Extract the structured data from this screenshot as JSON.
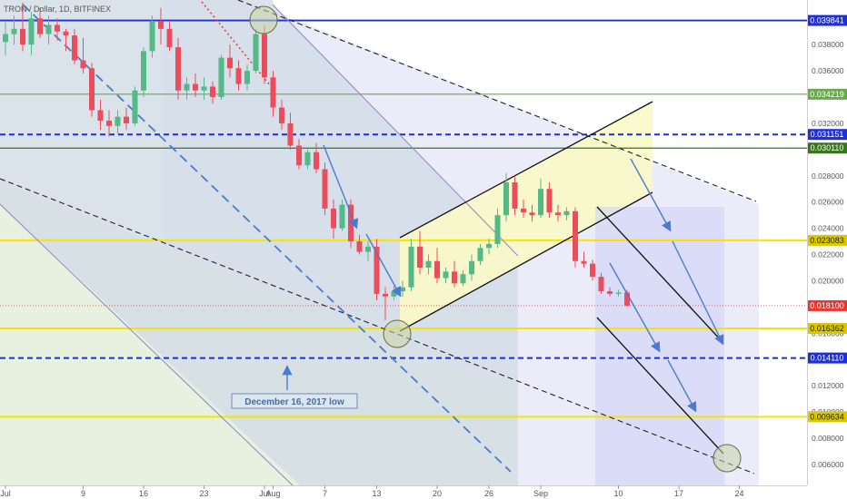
{
  "chart_data": {
    "type": "candlestick",
    "title": "TRON / Dollar, 1D, BITFINEX",
    "ylim": [
      0.0044,
      0.0414
    ],
    "y_ticks": [
      "0.038000",
      "0.036000",
      "0.032000",
      "0.028000",
      "0.026000",
      "0.024000",
      "0.022000",
      "0.020000",
      "0.018000",
      "0.016000",
      "0.012000",
      "0.010000",
      "0.008000",
      "0.006000"
    ],
    "x_ticks": [
      {
        "label": "Jul",
        "day": 0
      },
      {
        "label": "9",
        "day": 9
      },
      {
        "label": "16",
        "day": 16
      },
      {
        "label": "23",
        "day": 23
      },
      {
        "label": "Jul",
        "day": 30
      },
      {
        "label": "Aug",
        "day": 31
      },
      {
        "label": "7",
        "day": 37
      },
      {
        "label": "13",
        "day": 43
      },
      {
        "label": "20",
        "day": 50
      },
      {
        "label": "26",
        "day": 56
      },
      {
        "label": "Sep",
        "day": 62
      },
      {
        "label": "10",
        "day": 71
      },
      {
        "label": "17",
        "day": 78
      },
      {
        "label": "24",
        "day": 85
      }
    ],
    "horizontal_levels": [
      {
        "price": 0.039841,
        "label": "0.039841",
        "color": "#1f2fd6",
        "dash": "solid",
        "width": 1.8
      },
      {
        "price": 0.034219,
        "label": "0.034219",
        "color": "#6aa84f",
        "dash": "solid",
        "width": 1.2
      },
      {
        "price": 0.031151,
        "label": "0.031151",
        "color": "#1f2fd6",
        "dash": "dash",
        "width": 2
      },
      {
        "price": 0.03011,
        "label": "0.030110",
        "color": "#38761d",
        "dash": "solid",
        "width": 1.2
      },
      {
        "price": 0.023083,
        "label": "0.023083",
        "color": "#f2e600",
        "dash": "solid",
        "width": 2
      },
      {
        "price": 0.0181,
        "label": "0.018100",
        "color": "#e06666",
        "dash": "dot",
        "width": 1
      },
      {
        "price": 0.016362,
        "label": "0.016362",
        "color": "#f2e600",
        "dash": "solid",
        "width": 2
      },
      {
        "price": 0.01411,
        "label": "0.014110",
        "color": "#1f2fd6",
        "dash": "dash",
        "width": 2
      },
      {
        "price": 0.009634,
        "label": "0.009634",
        "color": "#f2e600",
        "dash": "solid",
        "width": 2
      }
    ],
    "candles": [
      {
        "d": 0,
        "o": 0.0382,
        "h": 0.0397,
        "l": 0.0372,
        "c": 0.0388
      },
      {
        "d": 1,
        "o": 0.0388,
        "h": 0.0402,
        "l": 0.038,
        "c": 0.0392
      },
      {
        "d": 2,
        "o": 0.0392,
        "h": 0.0412,
        "l": 0.0375,
        "c": 0.038
      },
      {
        "d": 3,
        "o": 0.038,
        "h": 0.0405,
        "l": 0.0372,
        "c": 0.04
      },
      {
        "d": 4,
        "o": 0.04,
        "h": 0.0408,
        "l": 0.0385,
        "c": 0.0388
      },
      {
        "d": 5,
        "o": 0.0388,
        "h": 0.0402,
        "l": 0.038,
        "c": 0.0395
      },
      {
        "d": 6,
        "o": 0.0395,
        "h": 0.04,
        "l": 0.0383,
        "c": 0.039
      },
      {
        "d": 7,
        "o": 0.039,
        "h": 0.0392,
        "l": 0.0375,
        "c": 0.0387
      },
      {
        "d": 8,
        "o": 0.0387,
        "h": 0.0392,
        "l": 0.0365,
        "c": 0.0368
      },
      {
        "d": 9,
        "o": 0.0368,
        "h": 0.0385,
        "l": 0.0358,
        "c": 0.0362
      },
      {
        "d": 10,
        "o": 0.0362,
        "h": 0.0366,
        "l": 0.0325,
        "c": 0.033
      },
      {
        "d": 11,
        "o": 0.033,
        "h": 0.0338,
        "l": 0.0315,
        "c": 0.0322
      },
      {
        "d": 12,
        "o": 0.0322,
        "h": 0.033,
        "l": 0.031,
        "c": 0.0318
      },
      {
        "d": 13,
        "o": 0.0318,
        "h": 0.033,
        "l": 0.0312,
        "c": 0.0325
      },
      {
        "d": 14,
        "o": 0.0325,
        "h": 0.0332,
        "l": 0.0315,
        "c": 0.032
      },
      {
        "d": 15,
        "o": 0.032,
        "h": 0.0348,
        "l": 0.0318,
        "c": 0.0345
      },
      {
        "d": 16,
        "o": 0.0345,
        "h": 0.0378,
        "l": 0.034,
        "c": 0.0375
      },
      {
        "d": 17,
        "o": 0.0375,
        "h": 0.0402,
        "l": 0.037,
        "c": 0.0398
      },
      {
        "d": 18,
        "o": 0.0398,
        "h": 0.0408,
        "l": 0.038,
        "c": 0.0392
      },
      {
        "d": 19,
        "o": 0.0392,
        "h": 0.0398,
        "l": 0.0375,
        "c": 0.0378
      },
      {
        "d": 20,
        "o": 0.0378,
        "h": 0.0385,
        "l": 0.0338,
        "c": 0.0345
      },
      {
        "d": 21,
        "o": 0.0345,
        "h": 0.0355,
        "l": 0.0338,
        "c": 0.035
      },
      {
        "d": 22,
        "o": 0.035,
        "h": 0.0358,
        "l": 0.034,
        "c": 0.0345
      },
      {
        "d": 23,
        "o": 0.0345,
        "h": 0.0355,
        "l": 0.0338,
        "c": 0.0348
      },
      {
        "d": 24,
        "o": 0.0348,
        "h": 0.0352,
        "l": 0.0335,
        "c": 0.034
      },
      {
        "d": 25,
        "o": 0.034,
        "h": 0.0372,
        "l": 0.0338,
        "c": 0.037
      },
      {
        "d": 26,
        "o": 0.037,
        "h": 0.038,
        "l": 0.0355,
        "c": 0.0362
      },
      {
        "d": 27,
        "o": 0.0362,
        "h": 0.0368,
        "l": 0.0345,
        "c": 0.035
      },
      {
        "d": 28,
        "o": 0.035,
        "h": 0.0365,
        "l": 0.0345,
        "c": 0.036
      },
      {
        "d": 29,
        "o": 0.036,
        "h": 0.0392,
        "l": 0.0358,
        "c": 0.0388
      },
      {
        "d": 30,
        "o": 0.0388,
        "h": 0.0395,
        "l": 0.035,
        "c": 0.0355
      },
      {
        "d": 31,
        "o": 0.0355,
        "h": 0.036,
        "l": 0.0325,
        "c": 0.0332
      },
      {
        "d": 32,
        "o": 0.0332,
        "h": 0.0338,
        "l": 0.0315,
        "c": 0.032
      },
      {
        "d": 33,
        "o": 0.032,
        "h": 0.0328,
        "l": 0.03,
        "c": 0.0303
      },
      {
        "d": 34,
        "o": 0.0303,
        "h": 0.0308,
        "l": 0.0285,
        "c": 0.0288
      },
      {
        "d": 35,
        "o": 0.0288,
        "h": 0.03,
        "l": 0.0285,
        "c": 0.0298
      },
      {
        "d": 36,
        "o": 0.0298,
        "h": 0.0305,
        "l": 0.0282,
        "c": 0.0285
      },
      {
        "d": 37,
        "o": 0.0285,
        "h": 0.029,
        "l": 0.025,
        "c": 0.0255
      },
      {
        "d": 38,
        "o": 0.0255,
        "h": 0.0262,
        "l": 0.0232,
        "c": 0.024
      },
      {
        "d": 39,
        "o": 0.024,
        "h": 0.0262,
        "l": 0.0238,
        "c": 0.0258
      },
      {
        "d": 40,
        "o": 0.0258,
        "h": 0.0262,
        "l": 0.0225,
        "c": 0.023
      },
      {
        "d": 41,
        "o": 0.023,
        "h": 0.0235,
        "l": 0.022,
        "c": 0.0222
      },
      {
        "d": 42,
        "o": 0.0222,
        "h": 0.023,
        "l": 0.0215,
        "c": 0.0226
      },
      {
        "d": 43,
        "o": 0.0226,
        "h": 0.0232,
        "l": 0.0185,
        "c": 0.019
      },
      {
        "d": 44,
        "o": 0.019,
        "h": 0.0195,
        "l": 0.017,
        "c": 0.0188
      },
      {
        "d": 45,
        "o": 0.0188,
        "h": 0.0196,
        "l": 0.0185,
        "c": 0.0192
      },
      {
        "d": 46,
        "o": 0.0192,
        "h": 0.02,
        "l": 0.0188,
        "c": 0.0195
      },
      {
        "d": 47,
        "o": 0.0195,
        "h": 0.0232,
        "l": 0.0192,
        "c": 0.0226
      },
      {
        "d": 48,
        "o": 0.0226,
        "h": 0.0238,
        "l": 0.0205,
        "c": 0.021
      },
      {
        "d": 49,
        "o": 0.021,
        "h": 0.022,
        "l": 0.0205,
        "c": 0.0215
      },
      {
        "d": 50,
        "o": 0.0215,
        "h": 0.0225,
        "l": 0.0198,
        "c": 0.0202
      },
      {
        "d": 51,
        "o": 0.0202,
        "h": 0.021,
        "l": 0.0198,
        "c": 0.0207
      },
      {
        "d": 52,
        "o": 0.0207,
        "h": 0.0215,
        "l": 0.0195,
        "c": 0.0198
      },
      {
        "d": 53,
        "o": 0.0198,
        "h": 0.0208,
        "l": 0.0196,
        "c": 0.0205
      },
      {
        "d": 54,
        "o": 0.0205,
        "h": 0.022,
        "l": 0.02,
        "c": 0.0215
      },
      {
        "d": 55,
        "o": 0.0215,
        "h": 0.0228,
        "l": 0.0212,
        "c": 0.0225
      },
      {
        "d": 56,
        "o": 0.0225,
        "h": 0.0232,
        "l": 0.022,
        "c": 0.0228
      },
      {
        "d": 57,
        "o": 0.0228,
        "h": 0.0255,
        "l": 0.0225,
        "c": 0.025
      },
      {
        "d": 58,
        "o": 0.025,
        "h": 0.0282,
        "l": 0.0245,
        "c": 0.0275
      },
      {
        "d": 59,
        "o": 0.0275,
        "h": 0.028,
        "l": 0.025,
        "c": 0.0255
      },
      {
        "d": 60,
        "o": 0.0255,
        "h": 0.0262,
        "l": 0.0248,
        "c": 0.0252
      },
      {
        "d": 61,
        "o": 0.0252,
        "h": 0.0258,
        "l": 0.0245,
        "c": 0.025
      },
      {
        "d": 62,
        "o": 0.025,
        "h": 0.0278,
        "l": 0.0248,
        "c": 0.027
      },
      {
        "d": 63,
        "o": 0.027,
        "h": 0.0275,
        "l": 0.0248,
        "c": 0.0252
      },
      {
        "d": 64,
        "o": 0.0252,
        "h": 0.0258,
        "l": 0.0245,
        "c": 0.025
      },
      {
        "d": 65,
        "o": 0.025,
        "h": 0.0256,
        "l": 0.0246,
        "c": 0.0253
      },
      {
        "d": 66,
        "o": 0.0253,
        "h": 0.0256,
        "l": 0.021,
        "c": 0.0215
      },
      {
        "d": 67,
        "o": 0.0215,
        "h": 0.0222,
        "l": 0.021,
        "c": 0.0213
      },
      {
        "d": 68,
        "o": 0.0213,
        "h": 0.0216,
        "l": 0.02,
        "c": 0.0203
      },
      {
        "d": 69,
        "o": 0.0203,
        "h": 0.0206,
        "l": 0.019,
        "c": 0.0192
      },
      {
        "d": 70,
        "o": 0.0192,
        "h": 0.0195,
        "l": 0.0188,
        "c": 0.019
      },
      {
        "d": 71,
        "o": 0.019,
        "h": 0.0193,
        "l": 0.0188,
        "c": 0.0191
      },
      {
        "d": 72,
        "o": 0.0191,
        "h": 0.0193,
        "l": 0.018,
        "c": 0.0181
      }
    ],
    "annotation": {
      "text": "December 16, 2017 low"
    }
  }
}
